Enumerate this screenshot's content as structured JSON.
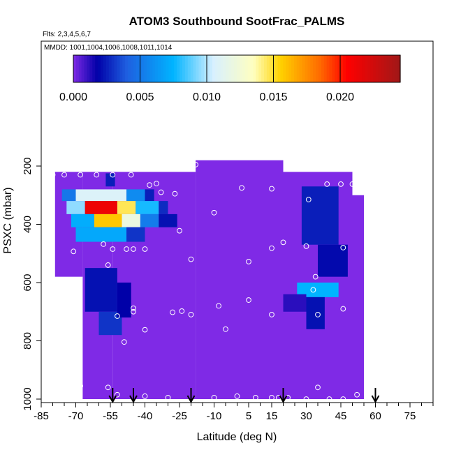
{
  "chart_data": {
    "type": "heatmap",
    "title": "ATOM3 Southbound SootFrac_PALMS",
    "subtitle": "Flts: 2,3,4,5,6,7",
    "annotation": "MMDD: 1001,1004,1006,1008,1011,1014",
    "xlabel": "Latitude (deg N)",
    "ylabel": "PSXC (mbar)",
    "xlim": [
      -85,
      85
    ],
    "ylim": [
      1000,
      0
    ],
    "x_ticks": [
      -85,
      -70,
      -55,
      -40,
      -25,
      -10,
      5,
      15,
      30,
      45,
      60,
      75
    ],
    "y_ticks": [
      200,
      400,
      600,
      800,
      1000
    ],
    "colorbar": {
      "min": 0.0,
      "max": 0.0245,
      "ticks": [
        "0.000",
        "0.005",
        "0.010",
        "0.015",
        "0.020"
      ],
      "colors": [
        "#7f2ae6",
        "#0000a8",
        "#1e5fe0",
        "#00b4ff",
        "#d8f0ff",
        "#ffffc0",
        "#ffd200",
        "#ff6a00",
        "#ff0000",
        "#a01818"
      ],
      "stops": [
        0.0,
        0.0018,
        0.004,
        0.0075,
        0.0105,
        0.0135,
        0.0155,
        0.0185,
        0.0205,
        0.0245
      ]
    },
    "background_color": "#7f2ae6",
    "flight_column_bands": [
      {
        "x": [
          -79,
          -67
        ],
        "p": [
          220,
          580
        ]
      },
      {
        "x": [
          -67,
          -54
        ],
        "p": [
          220,
          1000
        ]
      },
      {
        "x": [
          -54,
          -45
        ],
        "p": [
          220,
          1000
        ]
      },
      {
        "x": [
          -45,
          -18
        ],
        "p": [
          220,
          1000
        ]
      },
      {
        "x": [
          -18,
          20
        ],
        "p": [
          180,
          1000
        ]
      },
      {
        "x": [
          20,
          50
        ],
        "p": [
          220,
          1000
        ]
      },
      {
        "x": [
          50,
          55
        ],
        "p": [
          300,
          1000
        ]
      }
    ],
    "soot_cells": [
      {
        "x": [
          -76,
          -70
        ],
        "p": [
          280,
          320
        ],
        "value": 0.005
      },
      {
        "x": [
          -70,
          -48
        ],
        "p": [
          280,
          320
        ],
        "value": 0.0108
      },
      {
        "x": [
          -48,
          -40
        ],
        "p": [
          280,
          320
        ],
        "value": 0.0058
      },
      {
        "x": [
          -40,
          -36
        ],
        "p": [
          280,
          320
        ],
        "value": 0.0025
      },
      {
        "x": [
          -74,
          -66
        ],
        "p": [
          320,
          365
        ],
        "value": 0.0095
      },
      {
        "x": [
          -66,
          -52
        ],
        "p": [
          320,
          365
        ],
        "value": 0.0212
      },
      {
        "x": [
          -52,
          -44
        ],
        "p": [
          320,
          365
        ],
        "value": 0.0146
      },
      {
        "x": [
          -44,
          -34
        ],
        "p": [
          320,
          365
        ],
        "value": 0.0078
      },
      {
        "x": [
          -34,
          -30
        ],
        "p": [
          320,
          365
        ],
        "value": 0.0028
      },
      {
        "x": [
          -72,
          -62
        ],
        "p": [
          365,
          410
        ],
        "value": 0.0072
      },
      {
        "x": [
          -62,
          -50
        ],
        "p": [
          365,
          410
        ],
        "value": 0.0158
      },
      {
        "x": [
          -50,
          -42
        ],
        "p": [
          365,
          410
        ],
        "value": 0.012
      },
      {
        "x": [
          -42,
          -34
        ],
        "p": [
          365,
          410
        ],
        "value": 0.0052
      },
      {
        "x": [
          -34,
          -26
        ],
        "p": [
          365,
          410
        ],
        "value": 0.0022
      },
      {
        "x": [
          -70,
          -48
        ],
        "p": [
          410,
          460
        ],
        "value": 0.007
      },
      {
        "x": [
          -48,
          -40
        ],
        "p": [
          410,
          460
        ],
        "value": 0.003
      },
      {
        "x": [
          -57,
          -53
        ],
        "p": [
          225,
          270
        ],
        "value": 0.0025
      },
      {
        "x": [
          -66,
          -52
        ],
        "p": [
          550,
          700
        ],
        "value": 0.0022
      },
      {
        "x": [
          -60,
          -50
        ],
        "p": [
          700,
          780
        ],
        "value": 0.003
      },
      {
        "x": [
          -52,
          -46
        ],
        "p": [
          600,
          720
        ],
        "value": 0.0018
      },
      {
        "x": [
          28,
          44
        ],
        "p": [
          270,
          470
        ],
        "value": 0.0025
      },
      {
        "x": [
          35,
          48
        ],
        "p": [
          470,
          580
        ],
        "value": 0.002
      },
      {
        "x": [
          26,
          44
        ],
        "p": [
          600,
          650
        ],
        "value": 0.0075
      },
      {
        "x": [
          30,
          38
        ],
        "p": [
          650,
          760
        ],
        "value": 0.0022
      },
      {
        "x": [
          20,
          30
        ],
        "p": [
          640,
          700
        ],
        "value": 0.0012
      }
    ],
    "sample_points": [
      {
        "x": -80,
        "p": 230
      },
      {
        "x": -75,
        "p": 230
      },
      {
        "x": -68,
        "p": 230
      },
      {
        "x": -61,
        "p": 230
      },
      {
        "x": -54,
        "p": 230
      },
      {
        "x": -46,
        "p": 230
      },
      {
        "x": -38,
        "p": 265
      },
      {
        "x": -35,
        "p": 260
      },
      {
        "x": -33,
        "p": 290
      },
      {
        "x": -27,
        "p": 295
      },
      {
        "x": -18,
        "p": 195
      },
      {
        "x": 2,
        "p": 275
      },
      {
        "x": 15,
        "p": 278
      },
      {
        "x": 24,
        "p": 195
      },
      {
        "x": 31,
        "p": 315
      },
      {
        "x": 39,
        "p": 262
      },
      {
        "x": 45,
        "p": 262
      },
      {
        "x": 50,
        "p": 262
      },
      {
        "x": -10,
        "p": 360
      },
      {
        "x": -25,
        "p": 422
      },
      {
        "x": -58,
        "p": 468
      },
      {
        "x": -54,
        "p": 485
      },
      {
        "x": -48,
        "p": 485
      },
      {
        "x": -45,
        "p": 485
      },
      {
        "x": -40,
        "p": 485
      },
      {
        "x": -71,
        "p": 493
      },
      {
        "x": -20,
        "p": 520
      },
      {
        "x": 5,
        "p": 528
      },
      {
        "x": 15,
        "p": 482
      },
      {
        "x": 20,
        "p": 462
      },
      {
        "x": 30,
        "p": 475
      },
      {
        "x": 46,
        "p": 480
      },
      {
        "x": -56,
        "p": 540
      },
      {
        "x": 34,
        "p": 580
      },
      {
        "x": 33,
        "p": 625
      },
      {
        "x": -45,
        "p": 688
      },
      {
        "x": -45,
        "p": 700
      },
      {
        "x": -28,
        "p": 702
      },
      {
        "x": -24,
        "p": 698
      },
      {
        "x": -20,
        "p": 710
      },
      {
        "x": -8,
        "p": 680
      },
      {
        "x": 5,
        "p": 660
      },
      {
        "x": 15,
        "p": 710
      },
      {
        "x": 35,
        "p": 710
      },
      {
        "x": 46,
        "p": 690
      },
      {
        "x": -52,
        "p": 715
      },
      {
        "x": -40,
        "p": 762
      },
      {
        "x": -5,
        "p": 760
      },
      {
        "x": -49,
        "p": 804
      },
      {
        "x": -68,
        "p": 955
      },
      {
        "x": -56,
        "p": 960
      },
      {
        "x": -52,
        "p": 985
      },
      {
        "x": -40,
        "p": 990
      },
      {
        "x": -30,
        "p": 995
      },
      {
        "x": -10,
        "p": 995
      },
      {
        "x": 0,
        "p": 990
      },
      {
        "x": 8,
        "p": 995
      },
      {
        "x": 15,
        "p": 995
      },
      {
        "x": 18,
        "p": 995
      },
      {
        "x": 22,
        "p": 995
      },
      {
        "x": 30,
        "p": 1000
      },
      {
        "x": 35,
        "p": 960
      },
      {
        "x": 40,
        "p": 1000
      },
      {
        "x": 46,
        "p": 1000
      },
      {
        "x": 52,
        "p": 985
      }
    ],
    "arrow_latitudes": [
      -54,
      -45,
      -20,
      20,
      60
    ]
  }
}
